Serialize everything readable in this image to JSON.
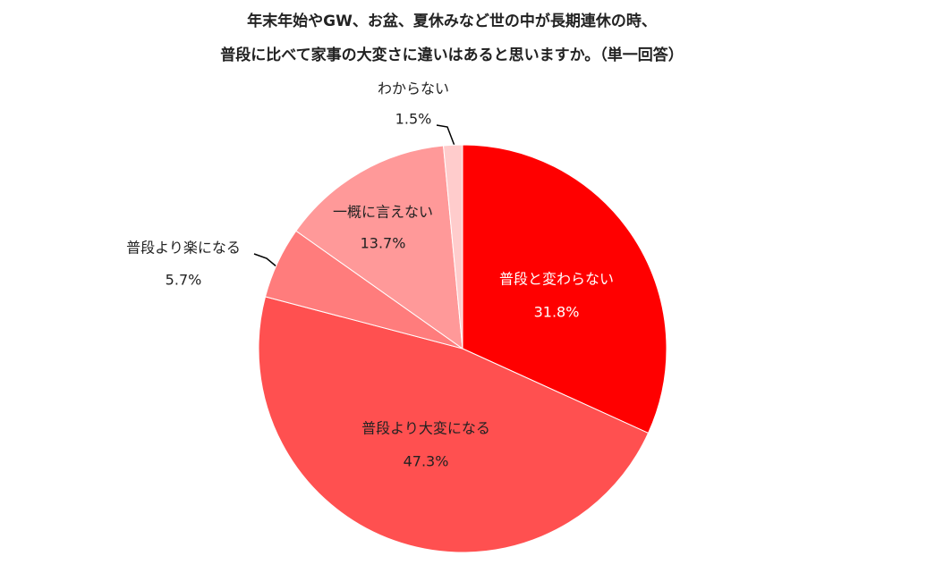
{
  "chart_data": {
    "type": "pie",
    "title": [
      "年末年始やGW、お盆、夏休みなど世の中が長期連休の時、",
      "普段に比べて家事の大変さに違いはあると思いますか。（単一回答）"
    ],
    "categories": [
      "普段と変わらない",
      "普段より大変になる",
      "普段より楽になる",
      "一概に言えない",
      "わからない"
    ],
    "values": [
      31.8,
      47.3,
      5.7,
      13.7,
      1.5
    ],
    "value_labels": [
      "31.8%",
      "47.3%",
      "5.7%",
      "13.7%",
      "1.5%"
    ],
    "colors": [
      "#ff0000",
      "#ff5050",
      "#ff7c7c",
      "#ff9999",
      "#ffcccc"
    ]
  }
}
